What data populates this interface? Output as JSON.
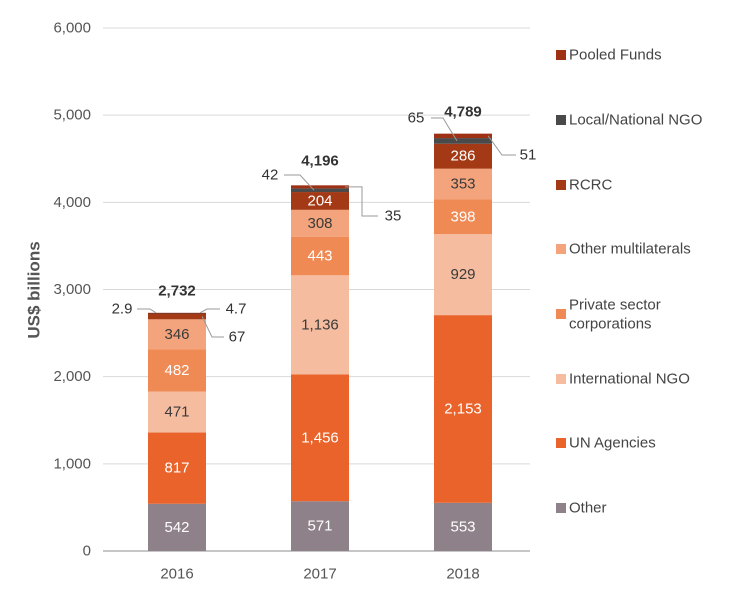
{
  "chart_data": {
    "type": "bar",
    "stacked": true,
    "categories": [
      "2016",
      "2017",
      "2018"
    ],
    "ylabel": "US$ billions",
    "ylim": [
      0,
      6000
    ],
    "yticks": [
      "0",
      "1,000",
      "2,000",
      "3,000",
      "4,000",
      "5,000",
      "6,000"
    ],
    "grid": true,
    "legend_position": "right",
    "series": [
      {
        "name": "Other",
        "color": "#8f8189",
        "values": [
          542,
          571,
          553
        ],
        "labels": [
          "542",
          "571",
          "553"
        ]
      },
      {
        "name": "UN Agencies",
        "color": "#e9632b",
        "values": [
          817,
          1456,
          2153
        ],
        "labels": [
          "817",
          "1,456",
          "2,153"
        ]
      },
      {
        "name": "International NGO",
        "color": "#f6bca0",
        "values": [
          471,
          1136,
          929
        ],
        "labels": [
          "471",
          "1,136",
          "929"
        ]
      },
      {
        "name": "Private sector corporations",
        "color": "#ef8a55",
        "values": [
          482,
          443,
          398
        ],
        "labels": [
          "482",
          "443",
          "398"
        ]
      },
      {
        "name": "Other multilaterals",
        "color": "#f4a47c",
        "values": [
          346,
          308,
          353
        ],
        "labels": [
          "346",
          "308",
          "353"
        ]
      },
      {
        "name": "RCRC",
        "color": "#a43a15",
        "values": [
          67,
          204,
          286
        ],
        "labels": [
          "67",
          "204",
          "286"
        ]
      },
      {
        "name": "Local/National NGO",
        "color": "#4a4a4a",
        "values": [
          2.9,
          42,
          65
        ],
        "labels": [
          "2.9",
          "42",
          "65"
        ]
      },
      {
        "name": "Pooled Funds",
        "color": "#9e3113",
        "values": [
          4.7,
          35,
          51
        ],
        "labels": [
          "4.7",
          "35",
          "51"
        ]
      }
    ],
    "totals": [
      "2,732",
      "4,196",
      "4,789"
    ]
  }
}
